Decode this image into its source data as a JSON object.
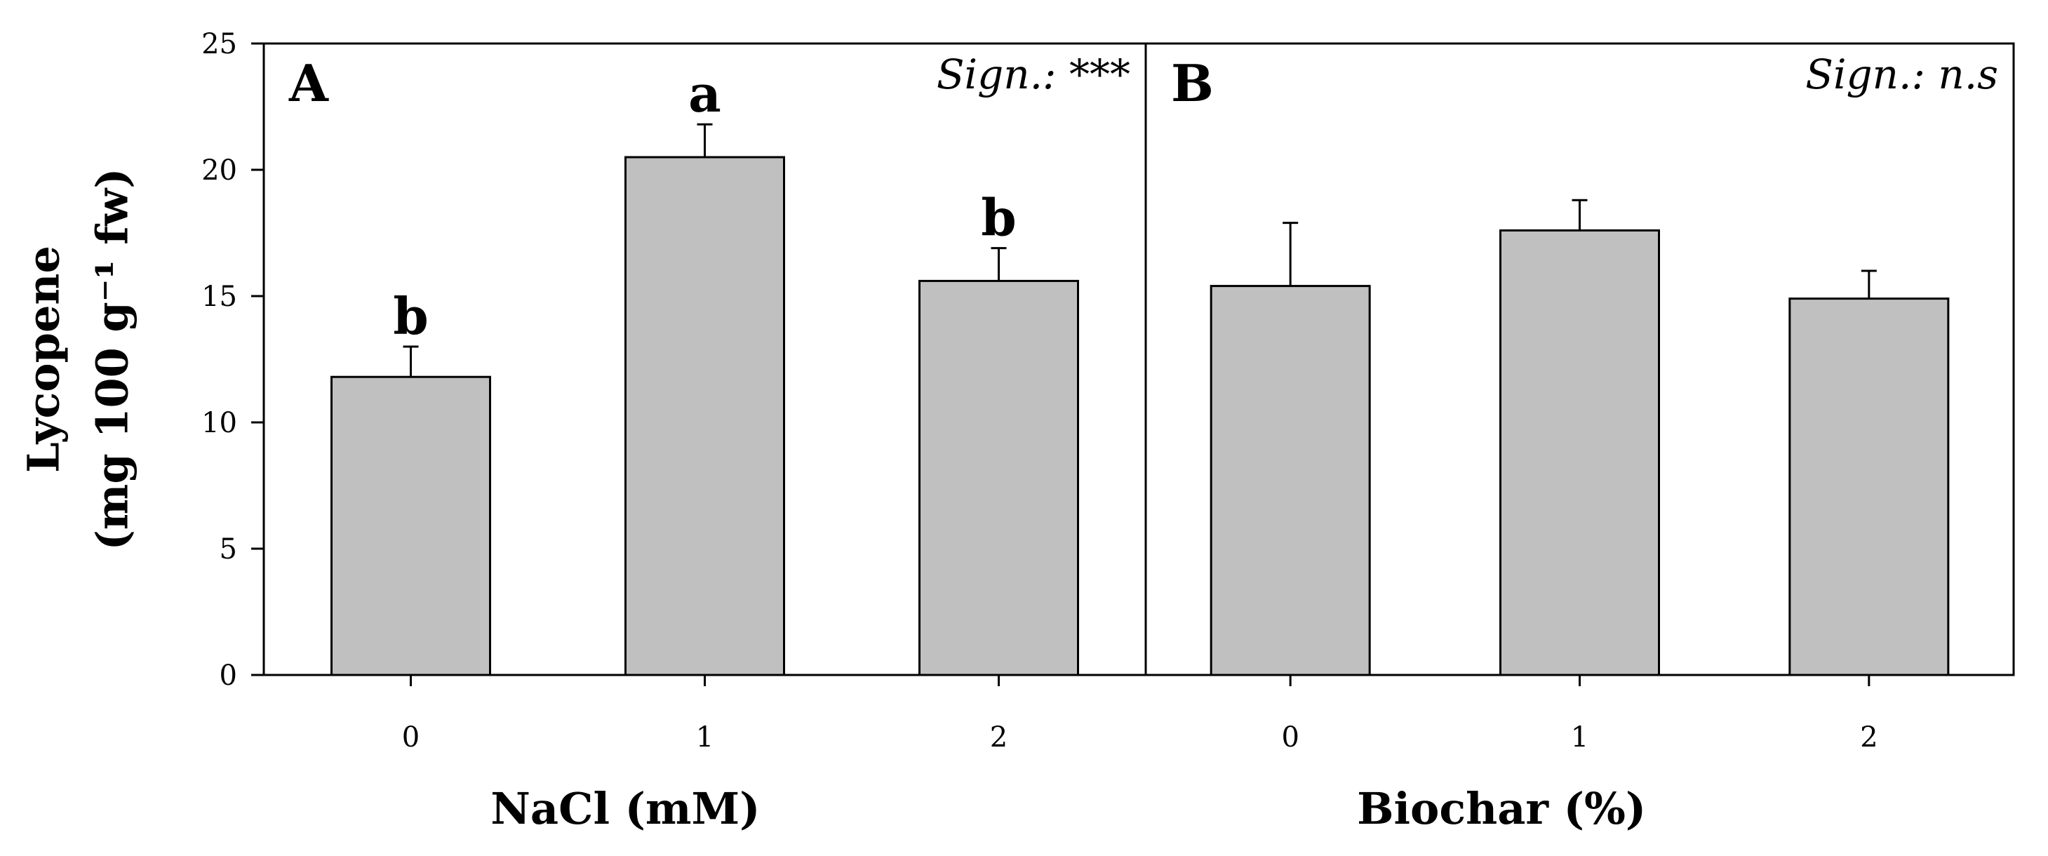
{
  "chart_data": {
    "type": "bar",
    "ylabel_line1": "Lycopene",
    "ylabel_line2": "(mg 100 g⁻¹ fw)",
    "ylim": [
      0,
      25
    ],
    "yticks": [
      0,
      5,
      10,
      15,
      20,
      25
    ],
    "grid": false,
    "bar_color": "#c0c0c0",
    "panels": [
      {
        "label": "A",
        "significance": "Sign.: ***",
        "xlabel": "NaCl (mM)",
        "categories": [
          "0",
          "1",
          "2"
        ],
        "values": [
          11.8,
          20.5,
          15.6
        ],
        "errors": [
          1.2,
          1.3,
          1.3
        ],
        "letters": [
          "b",
          "a",
          "b"
        ]
      },
      {
        "label": "B",
        "significance": "Sign.: n.s",
        "xlabel": "Biochar (%)",
        "categories": [
          "0",
          "1",
          "2"
        ],
        "values": [
          15.4,
          17.6,
          14.9
        ],
        "errors": [
          2.5,
          1.2,
          1.1
        ],
        "letters": [
          "",
          "",
          ""
        ]
      }
    ]
  }
}
